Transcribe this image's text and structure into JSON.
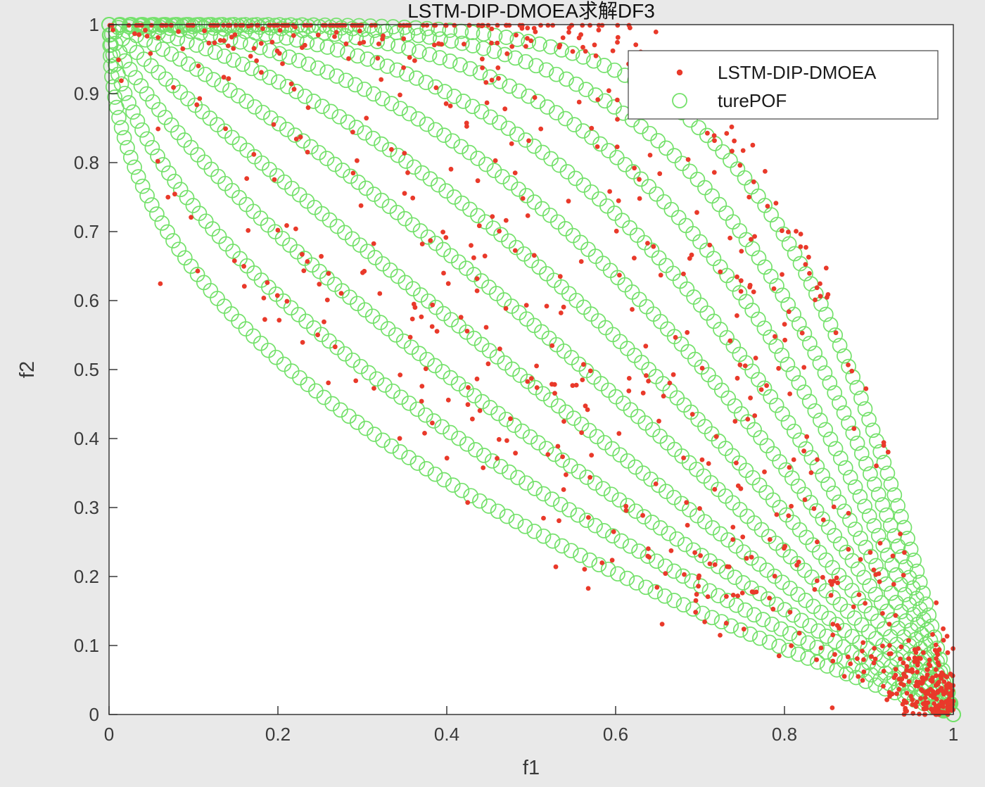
{
  "figure": {
    "background": "#e9e9e9",
    "plot_background": "#ffffff",
    "axis_color": "#2b2b2b",
    "tick_label_color": "#3a3a3a",
    "tick_length": 12
  },
  "chart_data": {
    "type": "scatter",
    "title": "LSTM-DIP-DMOEA求解DF3",
    "xlabel": "f1",
    "ylabel": "f2",
    "xlim": [
      0,
      1
    ],
    "ylim": [
      0,
      1
    ],
    "grid": false,
    "x_ticks": [
      0,
      0.2,
      0.4,
      0.6,
      0.8,
      1
    ],
    "x_tick_labels": [
      "0",
      "0.2",
      "0.4",
      "0.6",
      "0.8",
      "1"
    ],
    "y_ticks": [
      0,
      0.1,
      0.2,
      0.3,
      0.4,
      0.5,
      0.6,
      0.7,
      0.8,
      0.9,
      1
    ],
    "y_tick_labels": [
      "0",
      "0.1",
      "0.2",
      "0.3",
      "0.4",
      "0.5",
      "0.6",
      "0.7",
      "0.8",
      "0.9",
      "1"
    ],
    "legend": {
      "position": "top-right",
      "entries": [
        {
          "label": "LSTM-DIP-DMOEA",
          "marker": "dot",
          "color": "#e9392a"
        },
        {
          "label": "turePOF",
          "marker": "open-circle",
          "color": "#74e16b"
        }
      ]
    },
    "series": [
      {
        "name": "turePOF",
        "marker": "open-circle",
        "color": "#74e16b",
        "model": "pof_curve_family",
        "curve_equation": "f2 = 1 - f1^H",
        "curve_exponents": [
          0.45,
          0.58,
          0.74,
          0.94,
          1.21,
          1.55,
          1.98,
          2.53,
          3.24,
          4.14,
          5.3
        ],
        "points_per_curve": 112,
        "marker_radius": 10
      },
      {
        "name": "LSTM-DIP-DMOEA",
        "marker": "dot",
        "color": "#e9392a",
        "model": "seeded_noise",
        "marker_radius": 3.4,
        "seed": 1337,
        "clusters": [
          {
            "kind": "fan",
            "count": 430,
            "f1_bias": 0.8,
            "h_min": 0.45,
            "h_max": 5.3,
            "noise": 0.016,
            "big_noise": 0.06,
            "big_noise_prob": 0.35
          },
          {
            "kind": "envelope",
            "count": 150,
            "h": 5.3,
            "f1_min": 0.05,
            "f1_max": 0.95,
            "noise": 0.035
          },
          {
            "kind": "outlier",
            "count": 85,
            "f1_min": 0.5,
            "spread": 2.6
          },
          {
            "kind": "corner",
            "count": 150,
            "sx": 0.035,
            "sy": 0.05
          },
          {
            "kind": "topband",
            "count": 30,
            "f1_max": 0.5
          }
        ]
      }
    ]
  }
}
